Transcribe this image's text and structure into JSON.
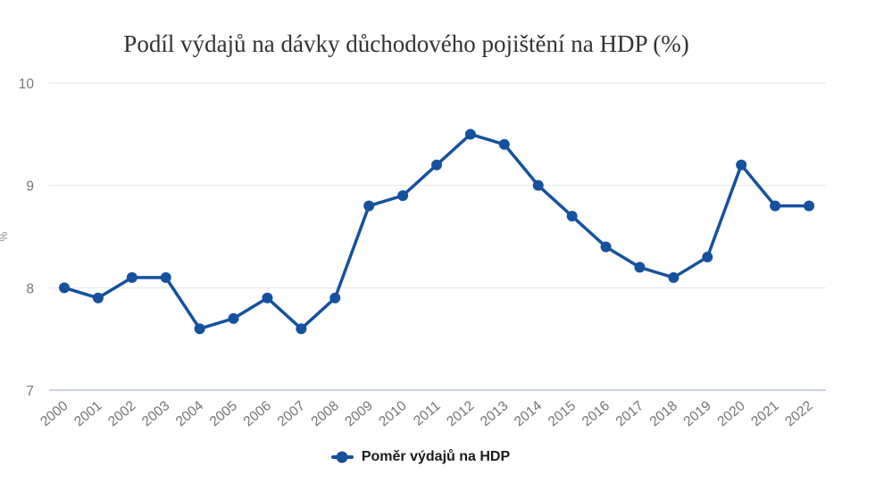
{
  "chart_data": {
    "type": "line",
    "title": "Podíl výdajů na dávky důchodového pojištění na HDP (%)",
    "ylabel": "%",
    "xlabel": "",
    "categories": [
      "2000",
      "2001",
      "2002",
      "2003",
      "2004",
      "2005",
      "2006",
      "2007",
      "2008",
      "2009",
      "2010",
      "2011",
      "2012",
      "2013",
      "2014",
      "2015",
      "2016",
      "2017",
      "2018",
      "2019",
      "2020",
      "2021",
      "2022"
    ],
    "series": [
      {
        "name": "Poměr výdajů na HDP",
        "values": [
          8.0,
          7.9,
          8.1,
          8.1,
          7.6,
          7.7,
          7.9,
          7.6,
          7.9,
          8.8,
          8.9,
          9.2,
          9.5,
          9.4,
          9.0,
          8.7,
          8.4,
          8.2,
          8.1,
          8.3,
          9.2,
          8.8,
          8.8
        ]
      }
    ],
    "ylim": [
      7,
      10
    ],
    "yticks": [
      7,
      8,
      9,
      10
    ],
    "grid": true,
    "legend_position": "bottom"
  },
  "theme": {
    "series_color": "#15519f",
    "grid_line_color": "#e6e6e6",
    "axis_line_color": "#ccd2e0",
    "tick_label_color": "#757575",
    "title_color": "#333333",
    "legend_text_color": "#1a1a1a",
    "background_color": "#ffffff"
  }
}
